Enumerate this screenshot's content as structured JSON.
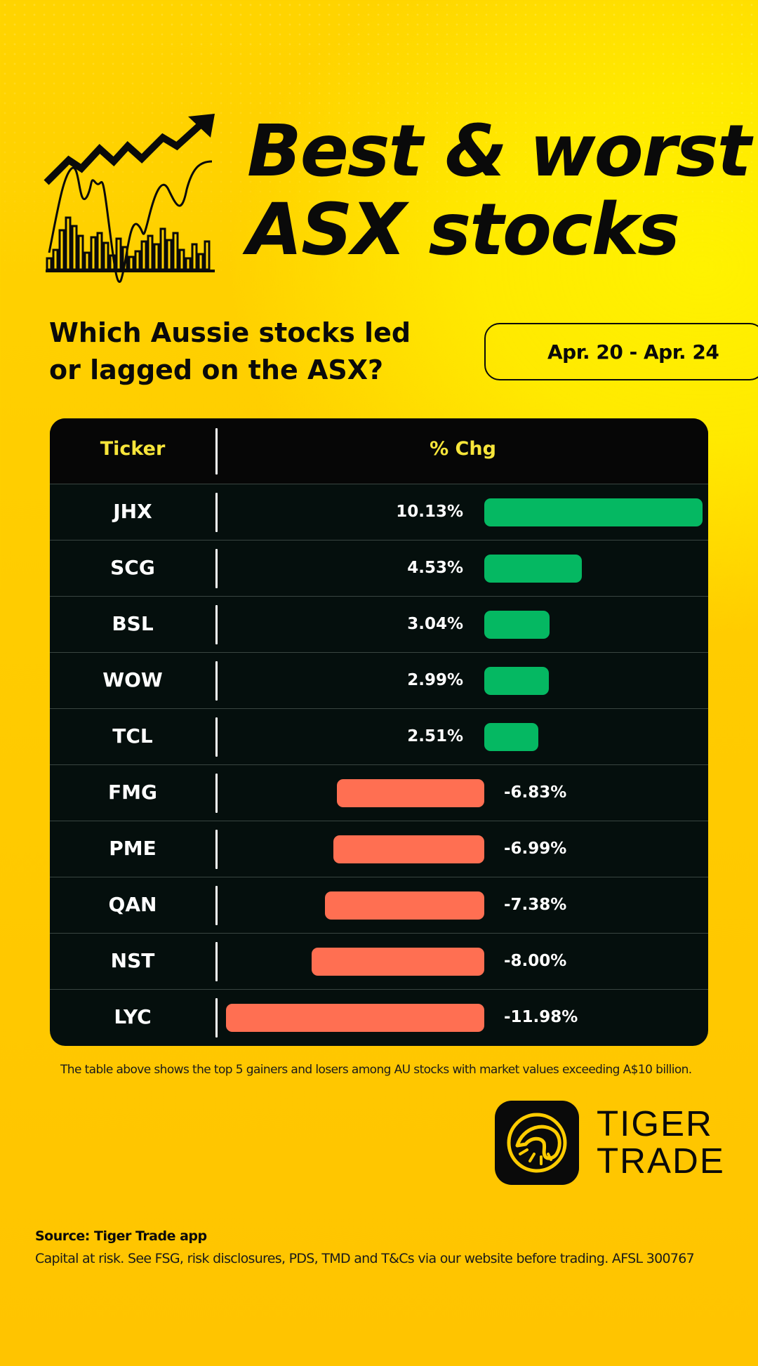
{
  "header": {
    "title_line1": "Best & worst",
    "title_line2": "ASX stocks",
    "subtitle_line1": "Which Aussie stocks led",
    "subtitle_line2": "or lagged on the ASX?",
    "date_range": "Apr. 20 - Apr. 24"
  },
  "chart_data": {
    "type": "bar",
    "orientation": "horizontal",
    "columns": [
      "Ticker",
      "% Chg"
    ],
    "categories": [
      "JHX",
      "SCG",
      "BSL",
      "WOW",
      "TCL",
      "FMG",
      "PME",
      "QAN",
      "NST",
      "LYC"
    ],
    "values": [
      10.13,
      4.53,
      3.04,
      2.99,
      2.51,
      -6.83,
      -6.99,
      -7.38,
      -8.0,
      -11.98
    ],
    "labels": [
      "10.13%",
      "4.53%",
      "3.04%",
      "2.99%",
      "2.51%",
      "-6.83%",
      "-6.99%",
      "-7.38%",
      "-8.00%",
      "-11.98%"
    ],
    "colors": {
      "positive": "#05b862",
      "negative": "#ff6f52"
    },
    "title": "",
    "xlabel": "",
    "ylabel": ""
  },
  "footer": {
    "note": "The table above shows the top 5 gainers and losers among AU stocks with market values exceeding A$10 billion.",
    "brand_line1": "TIGER",
    "brand_line2": "TRADE",
    "source": "Source: Tiger Trade app",
    "disclaimer": "Capital at risk. See FSG, risk disclosures, PDS, TMD and T&Cs via our website before trading. AFSL 300767"
  },
  "icons": {
    "header_icon": "stock-chart-arrow-icon",
    "brand_icon": "tiger-trade-logo-icon"
  }
}
